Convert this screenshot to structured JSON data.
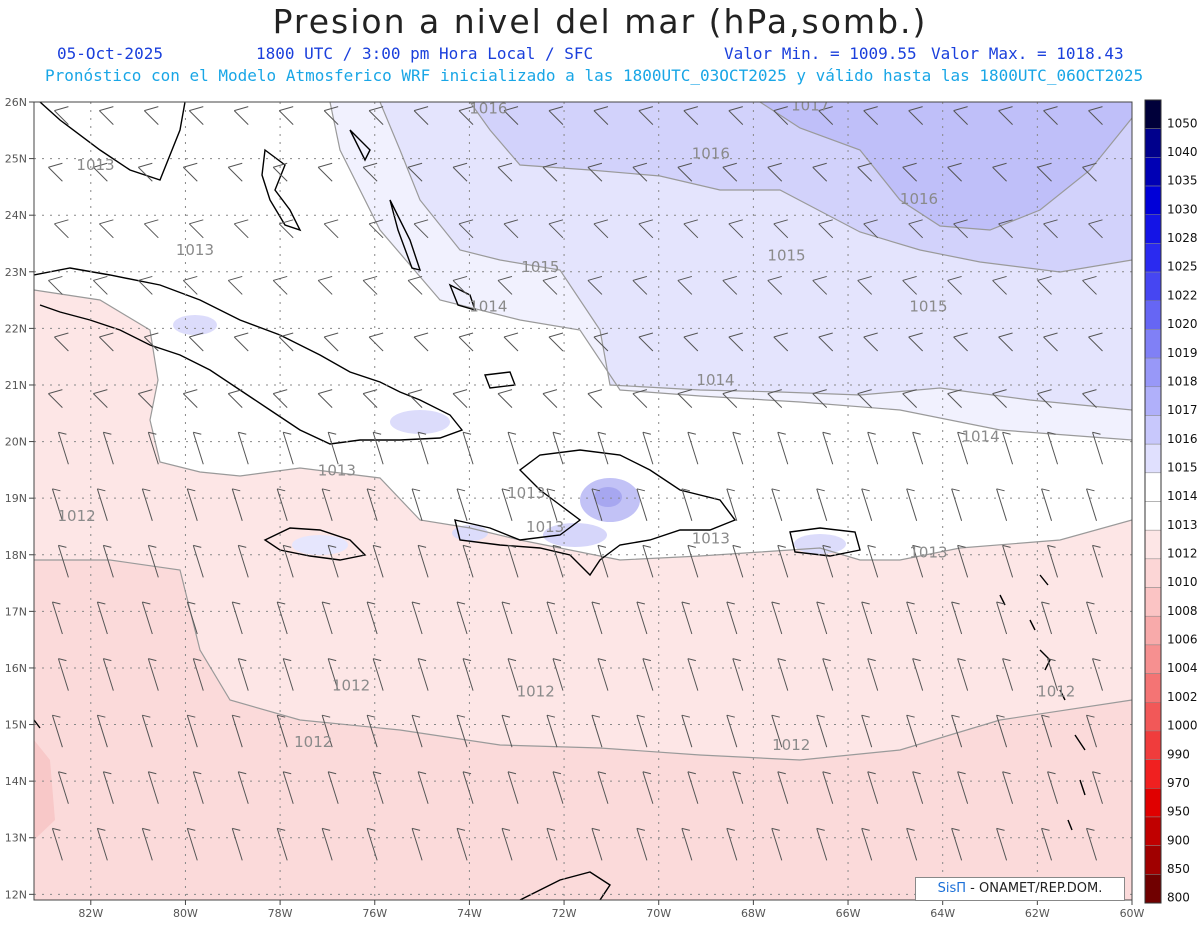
{
  "title": "Presion a nivel del mar (hPa,somb.)",
  "header": {
    "date": "05-Oct-2025",
    "time": "1800 UTC / 3:00 pm Hora Local / SFC",
    "min": "Valor Min. = 1009.55",
    "max": "Valor Max. = 1018.43",
    "forecast": "Pronóstico con el Modelo Atmosferico WRF inicializado a las 1800UTC_03OCT2025 y válido hasta las  1800UTC_06OCT2025"
  },
  "lat_labels": [
    "26N",
    "25N",
    "24N",
    "23N",
    "22N",
    "21N",
    "20N",
    "19N",
    "18N",
    "17N",
    "16N",
    "15N",
    "14N",
    "13N",
    "12N"
  ],
  "lon_labels": [
    "82W",
    "80W",
    "78W",
    "76W",
    "74W",
    "72W",
    "70W",
    "68W",
    "66W",
    "64W",
    "62W",
    "60W"
  ],
  "colorbar": {
    "levels": [
      "1050",
      "1040",
      "1035",
      "1030",
      "1028",
      "1025",
      "1022",
      "1020",
      "1019",
      "1018",
      "1017",
      "1016",
      "1015",
      "1014",
      "1013",
      "1012",
      "1010",
      "1008",
      "1006",
      "1004",
      "1002",
      "1000",
      "990",
      "970",
      "950",
      "900",
      "850",
      "800"
    ],
    "colors": [
      "#00003a",
      "#00008c",
      "#0000b4",
      "#0000d8",
      "#1414e6",
      "#2a2af0",
      "#4646f2",
      "#6666f4",
      "#8080f6",
      "#9898f8",
      "#b0b0fa",
      "#c8c8fc",
      "#e0e0fe",
      "#ffffff",
      "#ffffff",
      "#fde6e6",
      "#fcd6d6",
      "#fbc4c4",
      "#f8aaaa",
      "#f69090",
      "#f47474",
      "#f25858",
      "#f03c3c",
      "#f02020",
      "#e00000",
      "#c00000",
      "#a00000",
      "#700000"
    ]
  },
  "contour_labels": [
    {
      "text": "1016",
      "lon": -73.6,
      "lat": 25.8
    },
    {
      "text": "1017",
      "lon": -66.8,
      "lat": 25.85
    },
    {
      "text": "1016",
      "lon": -68.9,
      "lat": 25.0
    },
    {
      "text": "1016",
      "lon": -64.5,
      "lat": 24.2
    },
    {
      "text": "1013",
      "lon": -81.9,
      "lat": 24.8
    },
    {
      "text": "1013",
      "lon": -79.8,
      "lat": 23.3
    },
    {
      "text": "1015",
      "lon": -72.5,
      "lat": 23.0
    },
    {
      "text": "1015",
      "lon": -67.3,
      "lat": 23.2
    },
    {
      "text": "1014",
      "lon": -73.6,
      "lat": 22.3
    },
    {
      "text": "1015",
      "lon": -64.3,
      "lat": 22.3
    },
    {
      "text": "1014",
      "lon": -68.8,
      "lat": 21.0
    },
    {
      "text": "1014",
      "lon": -63.2,
      "lat": 20.0
    },
    {
      "text": "1013",
      "lon": -76.8,
      "lat": 19.4
    },
    {
      "text": "1012",
      "lon": -82.3,
      "lat": 18.6
    },
    {
      "text": "1013",
      "lon": -72.8,
      "lat": 19.0
    },
    {
      "text": "1013",
      "lon": -72.4,
      "lat": 18.4
    },
    {
      "text": "1013",
      "lon": -68.9,
      "lat": 18.2
    },
    {
      "text": "1013",
      "lon": -64.3,
      "lat": 17.95
    },
    {
      "text": "1012",
      "lon": -76.5,
      "lat": 15.6
    },
    {
      "text": "1012",
      "lon": -72.6,
      "lat": 15.5
    },
    {
      "text": "1012",
      "lon": -77.3,
      "lat": 14.6
    },
    {
      "text": "1012",
      "lon": -67.2,
      "lat": 14.55
    },
    {
      "text": "1012",
      "lon": -61.6,
      "lat": 15.5
    }
  ],
  "credit": {
    "brand": "SisΠ",
    "text": "- ONAMET/REP.DOM."
  }
}
